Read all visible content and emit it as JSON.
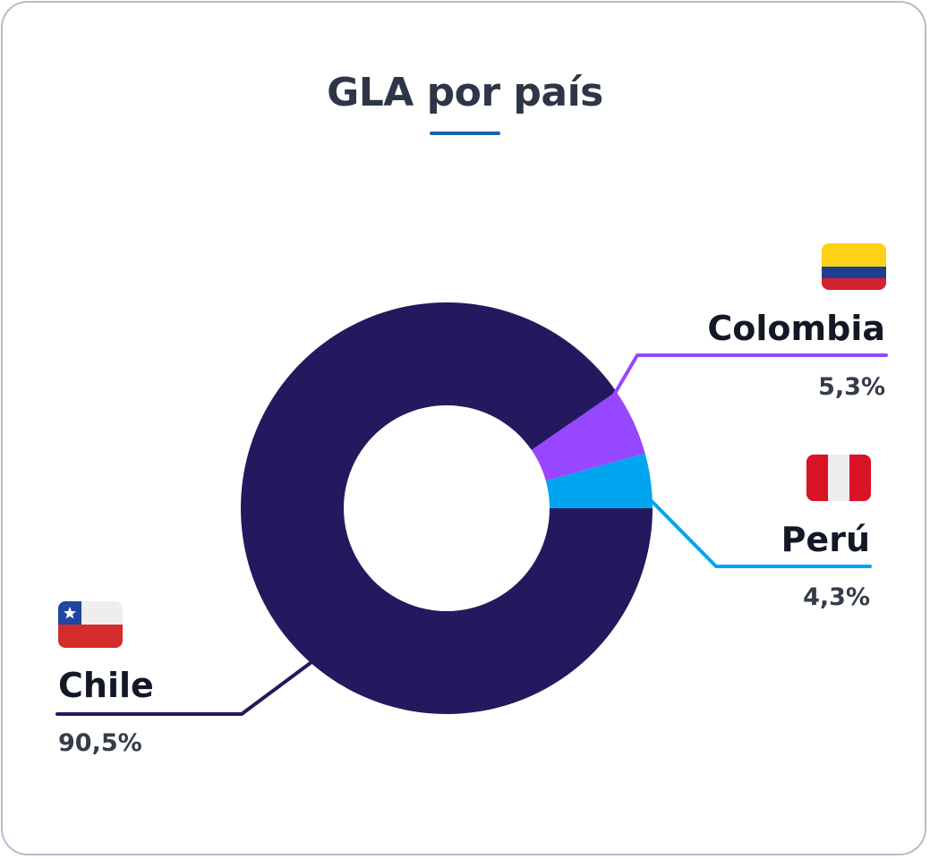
{
  "title": "GLA por país",
  "colors": {
    "title": "#2d3546",
    "title_underline": "#1763ad",
    "chile": "#24195e",
    "colombia": "#9747ff",
    "peru": "#00a5ef",
    "card_border": "#b6bccd"
  },
  "labels": {
    "colombia": {
      "name": "Colombia",
      "value": "5,3%",
      "flag": "colombia-flag"
    },
    "peru": {
      "name": "Perú",
      "value": "4,3%",
      "flag": "peru-flag"
    },
    "chile": {
      "name": "Chile",
      "value": "90,5%",
      "flag": "chile-flag"
    }
  },
  "chart_data": {
    "type": "pie",
    "variant": "donut",
    "title": "GLA por país",
    "categories": [
      "Perú",
      "Colombia",
      "Chile"
    ],
    "values": [
      4.3,
      5.3,
      90.5
    ],
    "value_labels": [
      "4,3%",
      "5,3%",
      "90,5%"
    ],
    "colors": [
      "#00a5ef",
      "#9747ff",
      "#24195e"
    ],
    "start_angle": "3 o'clock, counter-clockwise",
    "legend": "callout labels with flags"
  }
}
